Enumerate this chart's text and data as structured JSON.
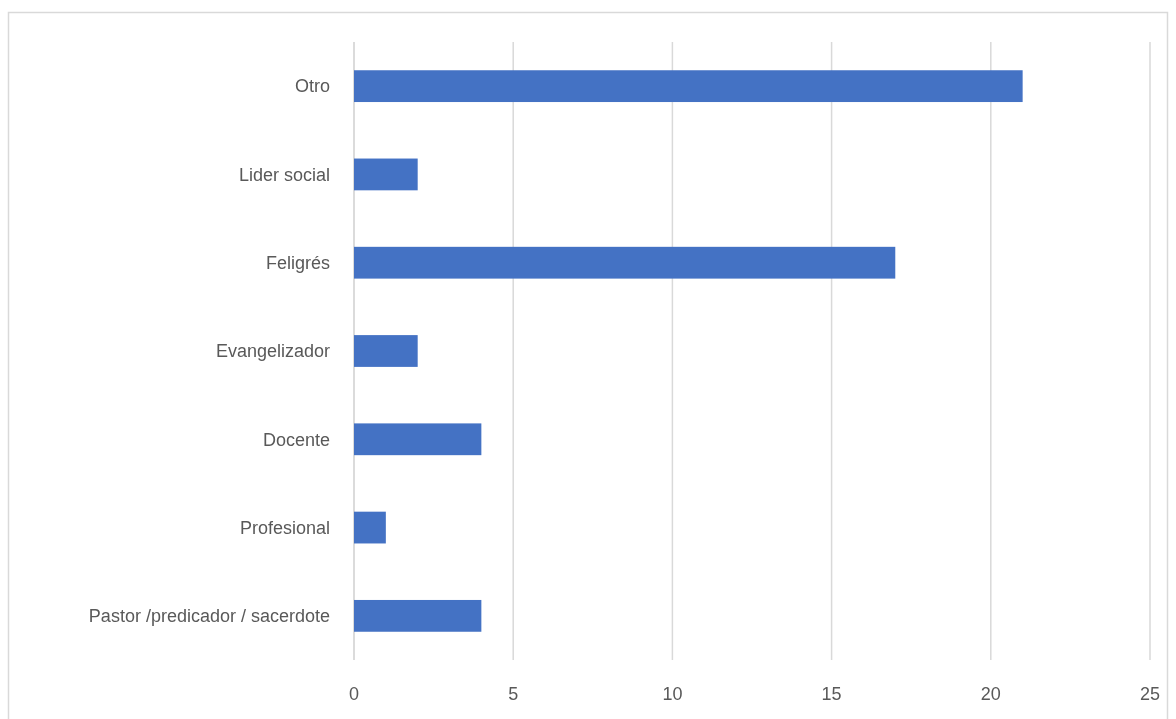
{
  "chart_data": {
    "type": "bar",
    "orientation": "horizontal",
    "categories": [
      "Otro",
      "Lider social",
      "Feligrés",
      "Evangelizador",
      "Docente",
      "Profesional",
      "Pastor /predicador / sacerdote"
    ],
    "values": [
      21,
      2,
      17,
      2,
      4,
      1,
      4
    ],
    "color": "#4472c4",
    "xlim": [
      0,
      25
    ],
    "xticks": [
      0,
      5,
      10,
      15,
      20,
      25
    ],
    "grid": "x"
  }
}
